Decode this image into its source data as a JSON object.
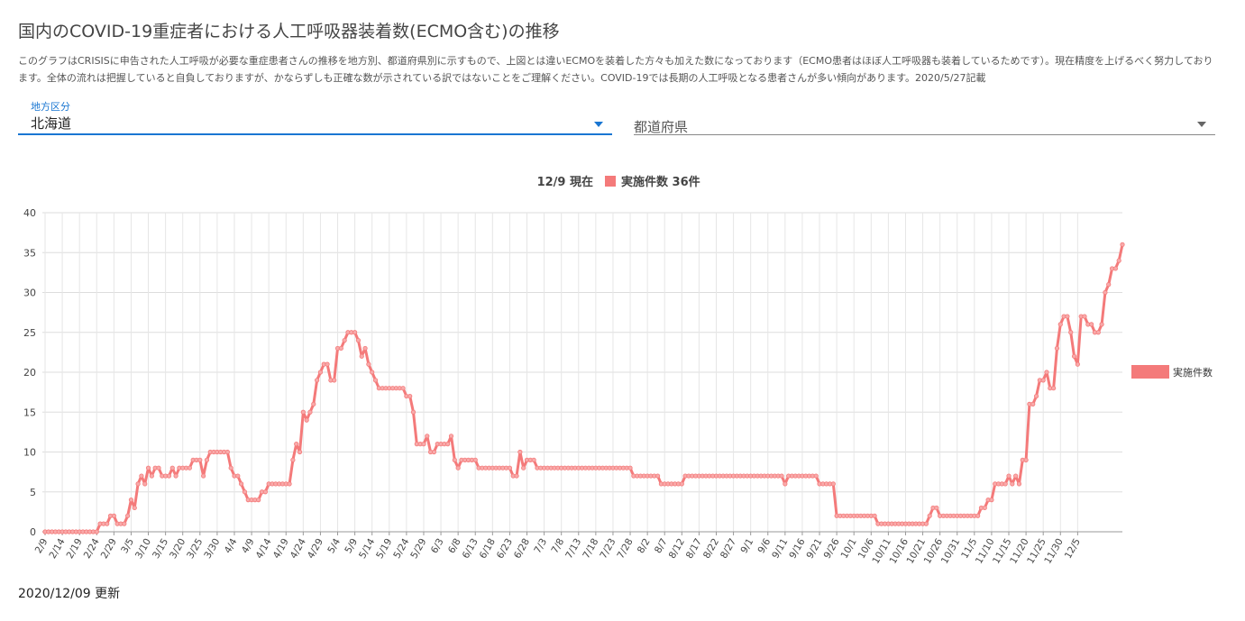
{
  "page": {
    "title": "国内のCOVID-19重症者における人工呼吸器装着数(ECMO含む)の推移",
    "description": "このグラフはCRISISに申告された人工呼吸が必要な重症患者さんの推移を地方別、都道府県別に示すもので、上図とは違いECMOを装着した方々も加えた数になっております（ECMO患者はほぼ人工呼吸器も装着しているためです）。現在精度を上げるべく努力しております。全体の流れは把握していると自負しておりますが、かならずしも正確な数が示されている訳ではないことをご理解ください。COVID-19では長期の人工呼吸となる患者さんが多い傾向があります。2020/5/27記載",
    "updated": "2020/12/09 更新"
  },
  "filters": {
    "region_label": "地方区分",
    "region_value": "北海道",
    "prefecture_placeholder": "都道府県"
  },
  "colors": {
    "series": "#f47a7a",
    "series_point_fill": "#f8aaaa",
    "accent": "#1976d2"
  },
  "chart_data": {
    "type": "line",
    "header_date": "12/9 現在",
    "header_series": "実施件数 36件",
    "legend": "実施件数",
    "legend_position": "right",
    "grid": true,
    "ylim": [
      0,
      40
    ],
    "yticks": [
      0,
      5,
      10,
      15,
      20,
      25,
      30,
      35,
      40
    ],
    "x_tick_labels": [
      "2/9",
      "2/14",
      "2/19",
      "2/24",
      "2/29",
      "3/5",
      "3/10",
      "3/15",
      "3/20",
      "3/25",
      "3/30",
      "4/4",
      "4/9",
      "4/14",
      "4/19",
      "4/24",
      "4/29",
      "5/4",
      "5/9",
      "5/14",
      "5/19",
      "5/24",
      "5/29",
      "6/3",
      "6/8",
      "6/13",
      "6/18",
      "6/23",
      "6/28",
      "7/3",
      "7/8",
      "7/13",
      "7/18",
      "7/23",
      "7/28",
      "8/2",
      "8/7",
      "8/12",
      "8/17",
      "8/22",
      "8/27",
      "9/1",
      "9/6",
      "9/11",
      "9/16",
      "9/21",
      "9/26",
      "10/1",
      "10/6",
      "10/11",
      "10/16",
      "10/21",
      "10/26",
      "10/31",
      "11/5",
      "11/10",
      "11/15",
      "11/20",
      "11/25",
      "11/30",
      "12/5"
    ],
    "start_date": "2/9",
    "end_date": "12/9",
    "series": [
      {
        "name": "実施件数",
        "values": [
          0,
          0,
          0,
          0,
          0,
          0,
          0,
          0,
          0,
          0,
          0,
          0,
          0,
          0,
          0,
          0,
          1,
          1,
          1,
          2,
          2,
          1,
          1,
          1,
          2,
          4,
          3,
          6,
          7,
          6,
          8,
          7,
          8,
          8,
          7,
          7,
          7,
          8,
          7,
          8,
          8,
          8,
          8,
          9,
          9,
          9,
          7,
          9,
          10,
          10,
          10,
          10,
          10,
          10,
          8,
          7,
          7,
          6,
          5,
          4,
          4,
          4,
          4,
          5,
          5,
          6,
          6,
          6,
          6,
          6,
          6,
          6,
          9,
          11,
          10,
          15,
          14,
          15,
          16,
          19,
          20,
          21,
          21,
          19,
          19,
          23,
          23,
          24,
          25,
          25,
          25,
          24,
          22,
          23,
          21,
          20,
          19,
          18,
          18,
          18,
          18,
          18,
          18,
          18,
          18,
          17,
          17,
          15,
          11,
          11,
          11,
          12,
          10,
          10,
          11,
          11,
          11,
          11,
          12,
          9,
          8,
          9,
          9,
          9,
          9,
          9,
          8,
          8,
          8,
          8,
          8,
          8,
          8,
          8,
          8,
          8,
          7,
          7,
          10,
          8,
          9,
          9,
          9,
          8,
          8,
          8,
          8,
          8,
          8,
          8,
          8,
          8,
          8,
          8,
          8,
          8,
          8,
          8,
          8,
          8,
          8,
          8,
          8,
          8,
          8,
          8,
          8,
          8,
          8,
          8,
          8,
          7,
          7,
          7,
          7,
          7,
          7,
          7,
          7,
          6,
          6,
          6,
          6,
          6,
          6,
          6,
          7,
          7,
          7,
          7,
          7,
          7,
          7,
          7,
          7,
          7,
          7,
          7,
          7,
          7,
          7,
          7,
          7,
          7,
          7,
          7,
          7,
          7,
          7,
          7,
          7,
          7,
          7,
          7,
          7,
          6,
          7,
          7,
          7,
          7,
          7,
          7,
          7,
          7,
          7,
          6,
          6,
          6,
          6,
          6,
          2,
          2,
          2,
          2,
          2,
          2,
          2,
          2,
          2,
          2,
          2,
          2,
          1,
          1,
          1,
          1,
          1,
          1,
          1,
          1,
          1,
          1,
          1,
          1,
          1,
          1,
          1,
          2,
          3,
          3,
          2,
          2,
          2,
          2,
          2,
          2,
          2,
          2,
          2,
          2,
          2,
          2,
          3,
          3,
          4,
          4,
          6,
          6,
          6,
          6,
          7,
          6,
          7,
          6,
          9,
          9,
          16,
          16,
          17,
          19,
          19,
          20,
          18,
          18,
          23,
          26,
          27,
          27,
          25,
          22,
          21,
          27,
          27,
          26,
          26,
          25,
          25,
          26,
          30,
          31,
          33,
          33,
          34,
          36
        ]
      }
    ]
  }
}
